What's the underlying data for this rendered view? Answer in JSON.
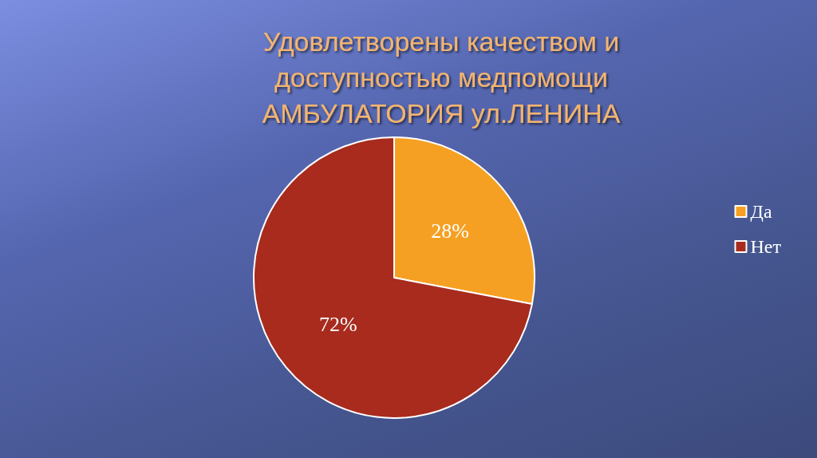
{
  "chart_data": {
    "type": "pie",
    "title": "Удовлетворены качеством и\nдоступностью медпомощи\nАМБУЛАТОРИЯ ул.ЛЕНИНА",
    "categories": [
      "Да",
      "Нет"
    ],
    "values": [
      28,
      72
    ],
    "colors": [
      "#f5a023",
      "#a82b1e"
    ],
    "value_labels": [
      "28%",
      "72%"
    ],
    "legend": "right"
  }
}
